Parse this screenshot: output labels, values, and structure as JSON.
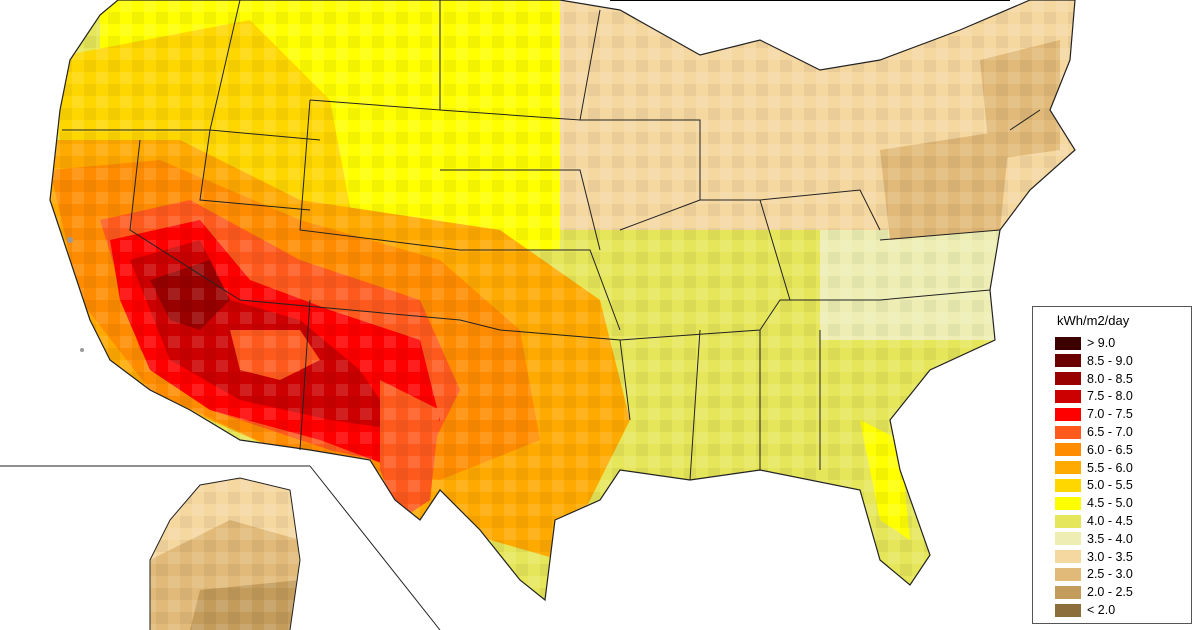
{
  "legend": {
    "title": "kWh/m2/day",
    "classes": [
      {
        "label": "> 9.0",
        "color": "#3d0000"
      },
      {
        "label": "8.5 - 9.0",
        "color": "#6b0000"
      },
      {
        "label": "8.0 - 8.5",
        "color": "#990000"
      },
      {
        "label": "7.5 - 8.0",
        "color": "#cc0000"
      },
      {
        "label": "7.0 - 7.5",
        "color": "#ff0000"
      },
      {
        "label": "6.5 - 7.0",
        "color": "#ff5a1e"
      },
      {
        "label": "6.0 - 6.5",
        "color": "#ff8c00"
      },
      {
        "label": "5.5 - 6.0",
        "color": "#ffaa00"
      },
      {
        "label": "5.0 - 5.5",
        "color": "#ffd700"
      },
      {
        "label": "4.5 - 5.0",
        "color": "#ffff00"
      },
      {
        "label": "4.0 - 4.5",
        "color": "#e6e65a"
      },
      {
        "label": "3.5 - 4.0",
        "color": "#eeeeb4"
      },
      {
        "label": "3.0 - 3.5",
        "color": "#f5d7a0"
      },
      {
        "label": "2.5 - 3.0",
        "color": "#e1b978"
      },
      {
        "label": "2.0 - 2.5",
        "color": "#c39b5a"
      },
      {
        "label": "< 2.0",
        "color": "#8c6e3c"
      }
    ]
  }
}
